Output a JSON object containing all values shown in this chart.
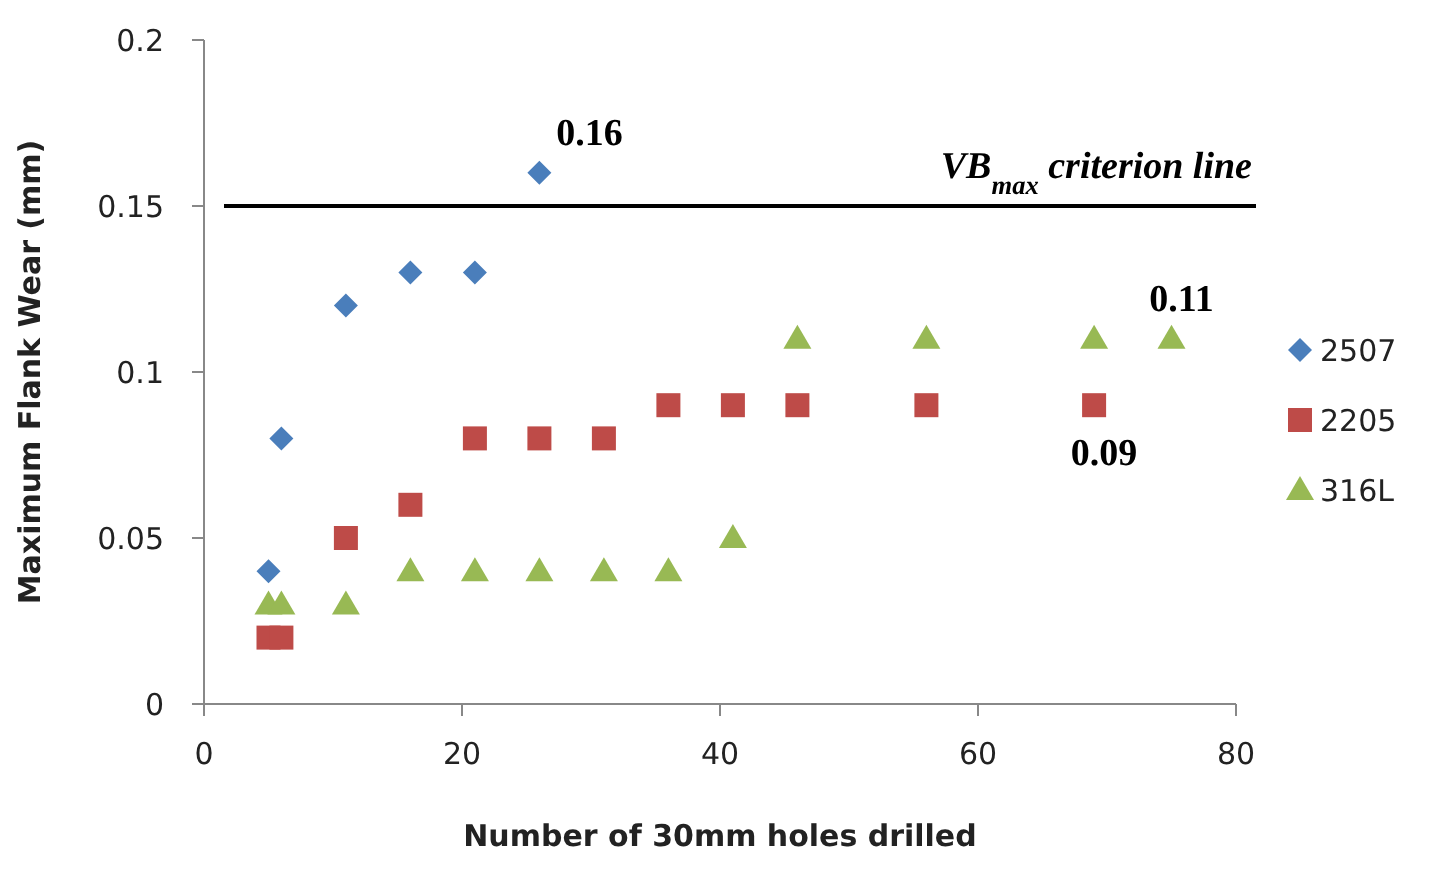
{
  "chart_data": {
    "type": "scatter",
    "xlabel": "Number of 30mm holes drilled",
    "ylabel": "Maximum Flank Wear (mm)",
    "xlim": [
      0,
      80
    ],
    "xticks": [
      0,
      20,
      40,
      60,
      80
    ],
    "ylim": [
      0,
      0.2
    ],
    "yticks": [
      0,
      0.05,
      0.1,
      0.15,
      0.2
    ],
    "grid": false,
    "legend": "right",
    "series": [
      {
        "name": "2507",
        "color": "#4a7ebb",
        "marker": "diamond",
        "x": [
          5,
          6,
          11,
          16,
          21,
          26
        ],
        "values": [
          0.04,
          0.08,
          0.12,
          0.13,
          0.13,
          0.16
        ],
        "value_labels": [
          null,
          null,
          null,
          null,
          null,
          "0.16"
        ]
      },
      {
        "name": "2205",
        "color": "#be4b48",
        "marker": "square",
        "x": [
          5,
          6,
          11,
          16,
          21,
          26,
          31,
          36,
          41,
          46,
          56,
          69
        ],
        "values": [
          0.02,
          0.02,
          0.05,
          0.06,
          0.08,
          0.08,
          0.08,
          0.09,
          0.09,
          0.09,
          0.09,
          0.09
        ],
        "value_labels": [
          null,
          null,
          null,
          null,
          null,
          null,
          null,
          null,
          null,
          null,
          null,
          "0.09"
        ]
      },
      {
        "name": "316L",
        "color": "#98b954",
        "marker": "triangle",
        "x": [
          5,
          6,
          11,
          16,
          21,
          26,
          31,
          36,
          41,
          46,
          56,
          69,
          75
        ],
        "values": [
          0.03,
          0.03,
          0.03,
          0.04,
          0.04,
          0.04,
          0.04,
          0.04,
          0.05,
          0.11,
          0.11,
          0.11,
          0.11
        ],
        "value_labels": [
          null,
          null,
          null,
          null,
          null,
          null,
          null,
          null,
          null,
          null,
          null,
          null,
          "0.11"
        ]
      }
    ],
    "ref_lines": [
      {
        "axis": "y",
        "value": 0.15,
        "label": "VB$_{max}$ criterion line",
        "color": "#000000",
        "line_style": "solid"
      }
    ]
  }
}
